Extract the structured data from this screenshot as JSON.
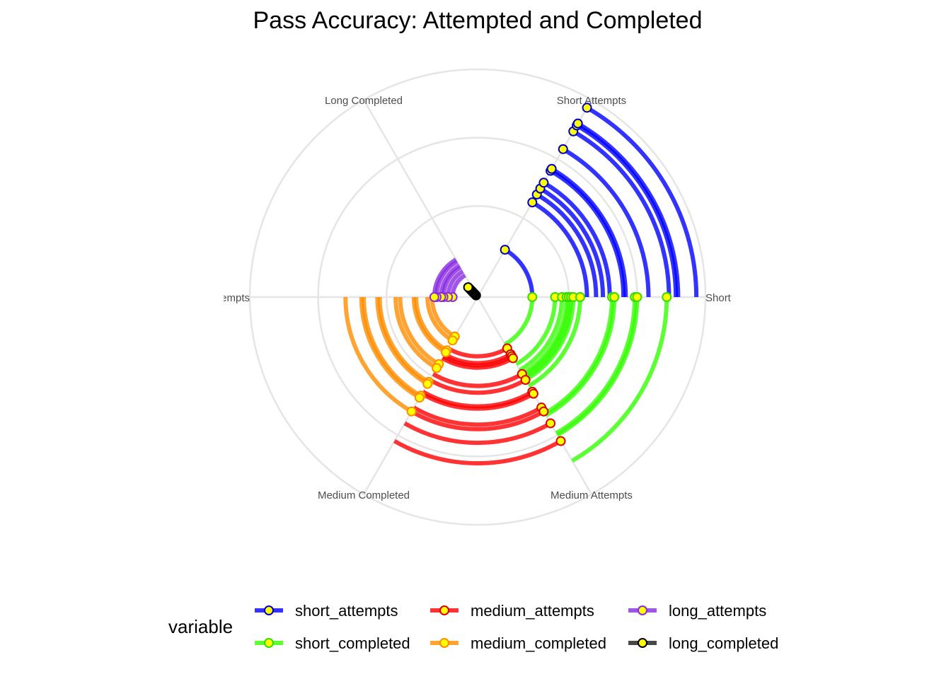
{
  "chart_data": {
    "type": "radial-arc",
    "title": "Pass Accuracy: Attempted and Completed",
    "axes": [
      "Short Completed",
      "Short Attempts",
      "Long Completed",
      "Long Attempts",
      "Medium Completed",
      "Medium Attempts"
    ],
    "axis_angles_deg": {
      "Short Completed": 0,
      "Short Attempts": 60,
      "Long Completed": 120,
      "Long Attempts": 180,
      "Medium Completed": 240,
      "Medium Attempts": 300
    },
    "rlim": [
      0,
      1000
    ],
    "grid_radii": [
      400,
      700,
      1000
    ],
    "legend": {
      "title": "variable",
      "position": "bottom",
      "entries": [
        "short_attempts",
        "short_completed",
        "medium_attempts",
        "medium_completed",
        "long_attempts",
        "long_completed"
      ]
    },
    "series": [
      {
        "name": "short_attempts",
        "line_color": "#0000ff",
        "point_fill": "#ffff00",
        "point_stroke": "#0000cc",
        "from_axis": "Short Completed",
        "to_axis": "Short Attempts",
        "values": [
          240,
          480,
          520,
          550,
          580,
          640,
          650,
          750,
          840,
          870,
          880,
          960
        ]
      },
      {
        "name": "short_completed",
        "line_color": "#33ff00",
        "point_fill": "#ffff00",
        "point_stroke": "#33dd00",
        "from_axis": "Medium Attempts",
        "to_axis": "Short Completed",
        "values": [
          240,
          340,
          370,
          390,
          400,
          410,
          420,
          450,
          590,
          600,
          690,
          700,
          830
        ]
      },
      {
        "name": "medium_attempts",
        "line_color": "#ff0000",
        "point_fill": "#ffff00",
        "point_stroke": "#dd0000",
        "from_axis": "Medium Completed",
        "to_axis": "Medium Attempts",
        "values": [
          260,
          290,
          300,
          310,
          390,
          420,
          480,
          490,
          560,
          580,
          640,
          730
        ]
      },
      {
        "name": "medium_completed",
        "line_color": "#ff8c00",
        "point_fill": "#ffff00",
        "point_stroke": "#ff8c00",
        "from_axis": "Long Attempts",
        "to_axis": "Medium Completed",
        "values": [
          200,
          220,
          270,
          280,
          340,
          360,
          430,
          440,
          500,
          510,
          580
        ]
      },
      {
        "name": "long_attempts",
        "line_color": "#8a2be2",
        "point_fill": "#ffff00",
        "point_stroke": "#8a2be2",
        "from_axis": "Long Completed",
        "to_axis": "Long Attempts",
        "values": [
          110,
          130,
          150,
          160,
          180,
          190
        ]
      },
      {
        "name": "long_completed",
        "line_color": "#1a1a1a",
        "point_fill": "#ffff00",
        "point_stroke": "#000000",
        "from_axis": "Long Completed",
        "to_axis": "Long Completed",
        "values": [
          10,
          15,
          20,
          25,
          30,
          35,
          40,
          45,
          50,
          55,
          60
        ]
      }
    ]
  }
}
